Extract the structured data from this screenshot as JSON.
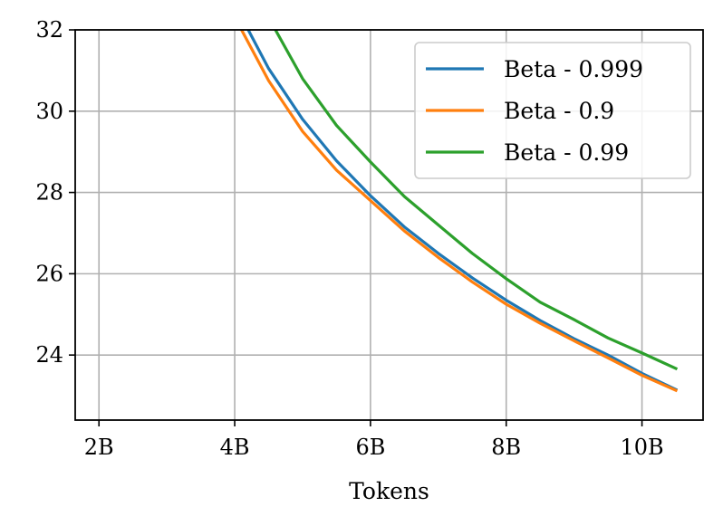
{
  "chart_data": {
    "type": "line",
    "title": "",
    "xlabel": "Tokens",
    "ylabel": "",
    "xlim": [
      1.65,
      10.9
    ],
    "ylim": [
      22.4,
      32
    ],
    "grid": true,
    "legend_position": "top-right",
    "x_ticks": [
      {
        "value": 2,
        "label": "2B"
      },
      {
        "value": 4,
        "label": "4B"
      },
      {
        "value": 6,
        "label": "6B"
      },
      {
        "value": 8,
        "label": "8B"
      },
      {
        "value": 10,
        "label": "10B"
      }
    ],
    "y_ticks": [
      {
        "value": 24,
        "label": "24"
      },
      {
        "value": 26,
        "label": "26"
      },
      {
        "value": 28,
        "label": "28"
      },
      {
        "value": 30,
        "label": "30"
      },
      {
        "value": 32,
        "label": "32"
      }
    ],
    "series": [
      {
        "name": "Beta - 0.999",
        "color": "#1f77b4",
        "points": [
          [
            4.2,
            32.0
          ],
          [
            4.5,
            31.05
          ],
          [
            5.0,
            29.8
          ],
          [
            5.5,
            28.78
          ],
          [
            6.0,
            27.92
          ],
          [
            6.5,
            27.15
          ],
          [
            7.0,
            26.5
          ],
          [
            7.5,
            25.9
          ],
          [
            8.0,
            25.35
          ],
          [
            8.5,
            24.85
          ],
          [
            9.0,
            24.4
          ],
          [
            9.5,
            24.0
          ],
          [
            10.0,
            23.55
          ],
          [
            10.5,
            23.15
          ]
        ]
      },
      {
        "name": "Beta - 0.9",
        "color": "#ff7f0e",
        "points": [
          [
            4.1,
            32.0
          ],
          [
            4.5,
            30.75
          ],
          [
            5.0,
            29.5
          ],
          [
            5.5,
            28.55
          ],
          [
            6.0,
            27.8
          ],
          [
            6.5,
            27.05
          ],
          [
            7.0,
            26.4
          ],
          [
            7.5,
            25.8
          ],
          [
            8.0,
            25.25
          ],
          [
            8.5,
            24.78
          ],
          [
            9.0,
            24.35
          ],
          [
            9.5,
            23.93
          ],
          [
            10.0,
            23.5
          ],
          [
            10.5,
            23.13
          ]
        ]
      },
      {
        "name": "Beta - 0.99",
        "color": "#2ca02c",
        "points": [
          [
            4.6,
            32.0
          ],
          [
            5.0,
            30.8
          ],
          [
            5.5,
            29.65
          ],
          [
            6.0,
            28.75
          ],
          [
            6.5,
            27.9
          ],
          [
            7.0,
            27.2
          ],
          [
            7.5,
            26.5
          ],
          [
            8.0,
            25.88
          ],
          [
            8.5,
            25.3
          ],
          [
            9.0,
            24.87
          ],
          [
            9.5,
            24.42
          ],
          [
            10.0,
            24.05
          ],
          [
            10.5,
            23.67
          ]
        ]
      }
    ]
  }
}
